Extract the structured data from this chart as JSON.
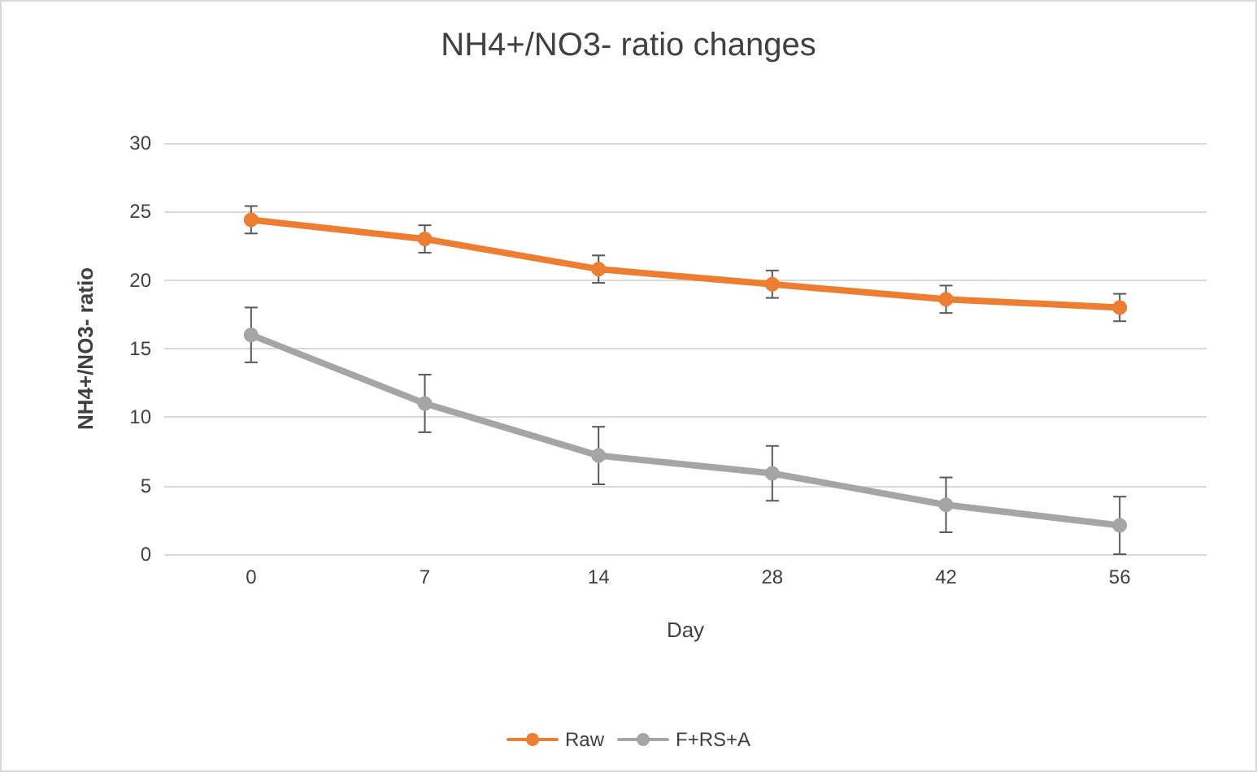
{
  "chart_data": {
    "type": "line",
    "title": "NH4+/NO3- ratio changes",
    "xlabel": "Day",
    "ylabel": "NH4+/NO3- ratio",
    "categories": [
      "0",
      "7",
      "14",
      "28",
      "42",
      "56"
    ],
    "series": [
      {
        "name": "Raw",
        "color": "#ed7d31",
        "values": [
          24.4,
          23.0,
          20.8,
          19.7,
          18.6,
          18.0
        ],
        "errors": [
          1,
          1,
          1,
          1,
          1,
          1
        ]
      },
      {
        "name": "F+RS+A",
        "color": "#a5a5a5",
        "values": [
          16.0,
          11.0,
          7.2,
          5.9,
          3.6,
          2.1
        ],
        "errors": [
          2,
          2.1,
          2.1,
          2,
          2,
          2.1
        ]
      }
    ],
    "ylim": [
      0,
      30
    ],
    "yticks": [
      0,
      5,
      10,
      15,
      20,
      25,
      30
    ],
    "grid": "y",
    "legend": "bottom",
    "marker": "circle",
    "line_style": "solid"
  }
}
